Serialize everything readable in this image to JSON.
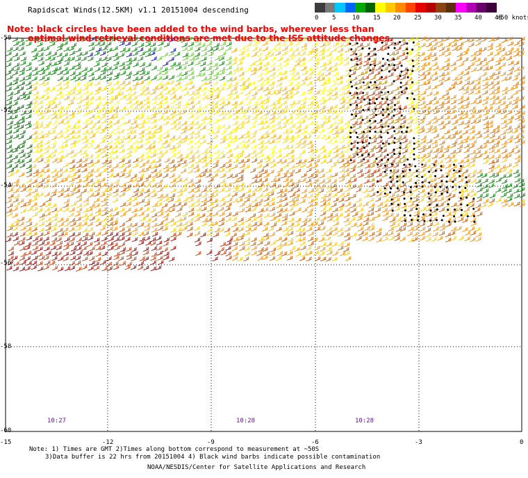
{
  "title": "Rapidscat Winds(12.5KM) v1.1 20151004 descending",
  "note": {
    "line1": "Note: black circles have been added to the wind barbs, wherever less than",
    "line2": "optimal wind retrieval conditions are met due to the ISS attitude changes."
  },
  "colorbar": {
    "colors": [
      "#3c3c3c",
      "#7a7a7a",
      "#00c8ff",
      "#0064ff",
      "#00aa00",
      "#006400",
      "#ffff00",
      "#ffc800",
      "#ff8c00",
      "#ff4500",
      "#e60000",
      "#b40000",
      "#8b4513",
      "#5c2e0a",
      "#ff00ff",
      "#b400b4",
      "#6a006a",
      "#3c003c"
    ],
    "labels": [
      "0",
      "5",
      "10",
      "15",
      "20",
      "25",
      "30",
      "35",
      "40",
      "45",
      ">50 knots"
    ]
  },
  "axes": {
    "y_labels": [
      "-50",
      "-52",
      "-54",
      "-56",
      "-58",
      "-60"
    ],
    "x_labels": [
      "-15",
      "-12",
      "-9",
      "-6",
      "-3",
      "0"
    ]
  },
  "times": [
    "10:27",
    "10:28",
    "10:28"
  ],
  "footnote": {
    "line1": "Note: 1) Times are GMT 2)Times along bottom correspond to measurement at ~50S",
    "line2": "3)Data buffer is 22 hrs from 20151004 4) Black wind barbs indicate possible contamination"
  },
  "credit": "NOAA/NESDIS/Center for Satellite Applications and Research"
}
